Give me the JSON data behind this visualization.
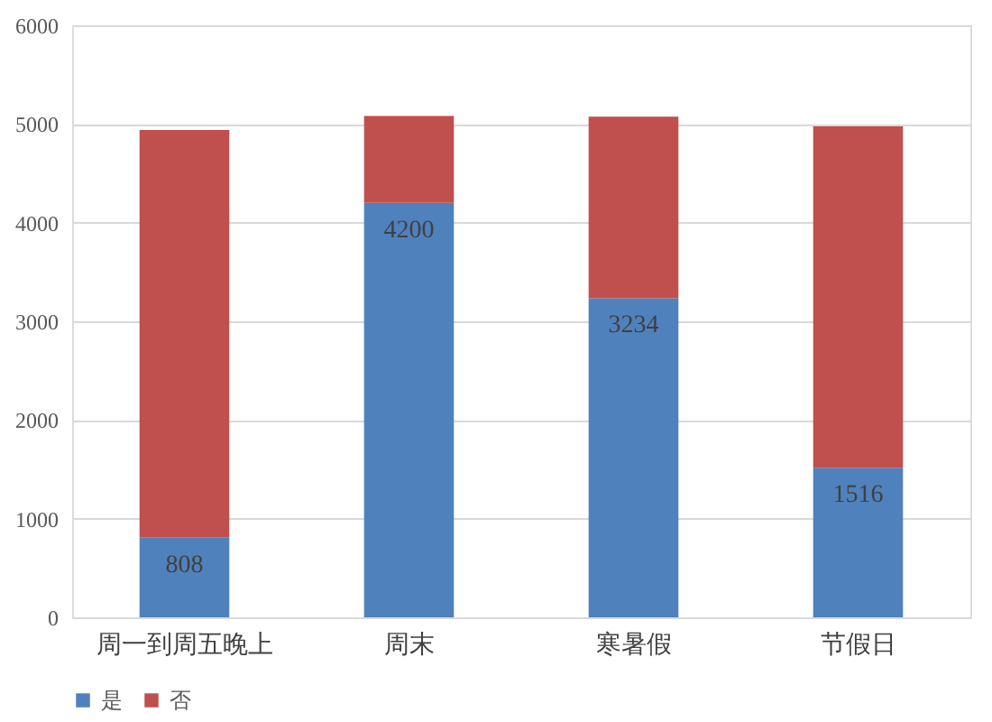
{
  "chart_data": {
    "type": "bar",
    "stacked": true,
    "categories": [
      "周一到周五晚上",
      "周末",
      "寒暑假",
      "节假日"
    ],
    "series": [
      {
        "name": "是",
        "color": "#4f81bd",
        "values": [
          808,
          4200,
          3234,
          1516
        ],
        "value_labels": [
          "808",
          "4200",
          "3234",
          "1516"
        ]
      },
      {
        "name": "否",
        "color": "#c0504d",
        "values": [
          4130,
          880,
          1840,
          3460
        ]
      }
    ],
    "ylim": [
      0,
      6000
    ],
    "yticks": [
      0,
      1000,
      2000,
      3000,
      4000,
      5000,
      6000
    ],
    "grid": "y",
    "legend": "bottom"
  }
}
